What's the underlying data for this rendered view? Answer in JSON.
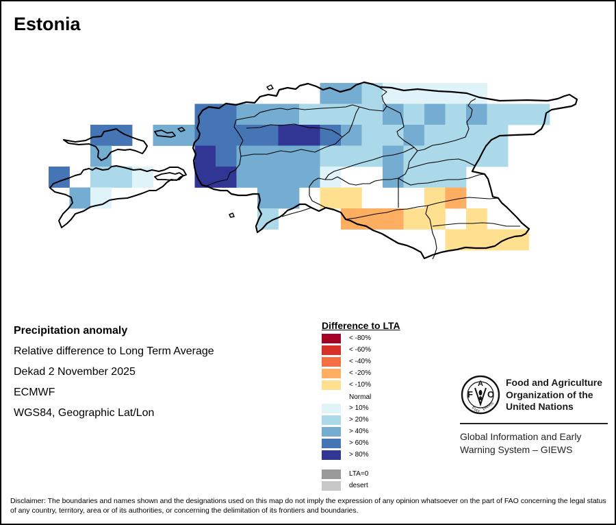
{
  "map": {
    "title": "Estonia",
    "grid_cells": [
      {
        "row": 0,
        "col_start": 13,
        "col_end": 14,
        "class": "> 40%"
      },
      {
        "row": 0,
        "col_start": 15,
        "col_end": 15,
        "class": "> 20%"
      },
      {
        "row": 0,
        "col_start": 16,
        "col_end": 20,
        "class": "> 10%"
      },
      {
        "row": 1,
        "col_start": 7,
        "col_end": 8,
        "class": "> 60%"
      },
      {
        "row": 1,
        "col_start": 9,
        "col_end": 11,
        "class": "> 40%"
      },
      {
        "row": 1,
        "col_start": 12,
        "col_end": 15,
        "class": "> 20%"
      },
      {
        "row": 1,
        "col_start": 16,
        "col_end": 16,
        "class": "> 40%"
      },
      {
        "row": 1,
        "col_start": 17,
        "col_end": 17,
        "class": "> 20%"
      },
      {
        "row": 1,
        "col_start": 18,
        "col_end": 18,
        "class": "> 40%"
      },
      {
        "row": 1,
        "col_start": 19,
        "col_end": 19,
        "class": "> 20%"
      },
      {
        "row": 1,
        "col_start": 20,
        "col_end": 20,
        "class": "> 40%"
      },
      {
        "row": 1,
        "col_start": 21,
        "col_end": 23,
        "class": "> 20%"
      },
      {
        "row": 2,
        "col_start": 2,
        "col_end": 3,
        "class": "> 60%"
      },
      {
        "row": 2,
        "col_start": 5,
        "col_end": 6,
        "class": "> 40%"
      },
      {
        "row": 2,
        "col_start": 7,
        "col_end": 10,
        "class": "> 60%"
      },
      {
        "row": 2,
        "col_start": 11,
        "col_end": 12,
        "class": "> 80%"
      },
      {
        "row": 2,
        "col_start": 13,
        "col_end": 13,
        "class": "> 60%"
      },
      {
        "row": 2,
        "col_start": 14,
        "col_end": 14,
        "class": "> 40%"
      },
      {
        "row": 2,
        "col_start": 15,
        "col_end": 16,
        "class": "> 20%"
      },
      {
        "row": 2,
        "col_start": 17,
        "col_end": 17,
        "class": "> 40%"
      },
      {
        "row": 2,
        "col_start": 18,
        "col_end": 21,
        "class": "> 20%"
      },
      {
        "row": 3,
        "col_start": 2,
        "col_end": 2,
        "class": "> 40%"
      },
      {
        "row": 3,
        "col_start": 7,
        "col_end": 7,
        "class": "> 80%"
      },
      {
        "row": 3,
        "col_start": 8,
        "col_end": 8,
        "class": "> 60%"
      },
      {
        "row": 3,
        "col_start": 9,
        "col_end": 12,
        "class": "> 40%"
      },
      {
        "row": 3,
        "col_start": 13,
        "col_end": 15,
        "class": "> 20%"
      },
      {
        "row": 3,
        "col_start": 16,
        "col_end": 16,
        "class": "> 40%"
      },
      {
        "row": 3,
        "col_start": 17,
        "col_end": 21,
        "class": "> 20%"
      },
      {
        "row": 4,
        "col_start": 0,
        "col_end": 0,
        "class": "> 60%"
      },
      {
        "row": 4,
        "col_start": 2,
        "col_end": 3,
        "class": "> 20%"
      },
      {
        "row": 4,
        "col_start": 4,
        "col_end": 4,
        "class": "> 10%"
      },
      {
        "row": 4,
        "col_start": 7,
        "col_end": 8,
        "class": "> 80%"
      },
      {
        "row": 4,
        "col_start": 9,
        "col_end": 12,
        "class": "> 40%"
      },
      {
        "row": 4,
        "col_start": 13,
        "col_end": 13,
        "class": "> 10%"
      },
      {
        "row": 4,
        "col_start": 16,
        "col_end": 16,
        "class": "> 40%"
      },
      {
        "row": 4,
        "col_start": 17,
        "col_end": 19,
        "class": "> 20%"
      },
      {
        "row": 5,
        "col_start": 1,
        "col_end": 1,
        "class": "> 40%"
      },
      {
        "row": 5,
        "col_start": 2,
        "col_end": 2,
        "class": "> 10%"
      },
      {
        "row": 5,
        "col_start": 10,
        "col_end": 11,
        "class": "> 40%"
      },
      {
        "row": 5,
        "col_start": 13,
        "col_end": 14,
        "class": "< -10%"
      },
      {
        "row": 5,
        "col_start": 18,
        "col_end": 18,
        "class": "< -10%"
      },
      {
        "row": 5,
        "col_start": 19,
        "col_end": 19,
        "class": "< -20%"
      },
      {
        "row": 6,
        "col_start": 10,
        "col_end": 10,
        "class": "> 20%"
      },
      {
        "row": 6,
        "col_start": 14,
        "col_end": 16,
        "class": "< -20%"
      },
      {
        "row": 6,
        "col_start": 17,
        "col_end": 18,
        "class": "< -10%"
      },
      {
        "row": 6,
        "col_start": 20,
        "col_end": 20,
        "class": "< -10%"
      },
      {
        "row": 7,
        "col_start": 19,
        "col_end": 22,
        "class": "< -10%"
      }
    ]
  },
  "info": {
    "heading": "Precipitation anomaly",
    "line1": "Relative difference to Long Term Average",
    "line2": "Dekad 2 November 2025",
    "line3": "ECMWF",
    "line4": "WGS84, Geographic Lat/Lon"
  },
  "legend": {
    "title": "Difference to LTA",
    "items": [
      {
        "label": "< -80%",
        "color": "#a50026"
      },
      {
        "label": "< -60%",
        "color": "#d73027"
      },
      {
        "label": "< -40%",
        "color": "#f46d43"
      },
      {
        "label": "< -20%",
        "color": "#fdae61"
      },
      {
        "label": "< -10%",
        "color": "#fee090"
      },
      {
        "label": "Normal",
        "color": null
      },
      {
        "label": "> 10%",
        "color": "#e0f3f8"
      },
      {
        "label": "> 20%",
        "color": "#abd9e9"
      },
      {
        "label": "> 40%",
        "color": "#74add1"
      },
      {
        "label": "> 60%",
        "color": "#4575b4"
      },
      {
        "label": "> 80%",
        "color": "#313695"
      },
      {
        "label": "LTA=0",
        "color": "#999999"
      },
      {
        "label": "desert",
        "color": "#c8c8c8"
      }
    ]
  },
  "logo": {
    "org_line1": "Food and Agriculture",
    "org_line2": "Organization of the",
    "org_line3": "United Nations",
    "emblem_text": "FAO FIAT PANIS",
    "system_line1": "Global Information and Early",
    "system_line2": "Warning System – GIEWS"
  },
  "disclaimer": "Disclaimer: The boundaries and names shown and the designations used on this map do not imply the expression of any opinion whatsoever on the part of FAO concerning the legal status of any country, territory, area or of its authorities, or concerning the delimitation of its frontiers and boundaries."
}
